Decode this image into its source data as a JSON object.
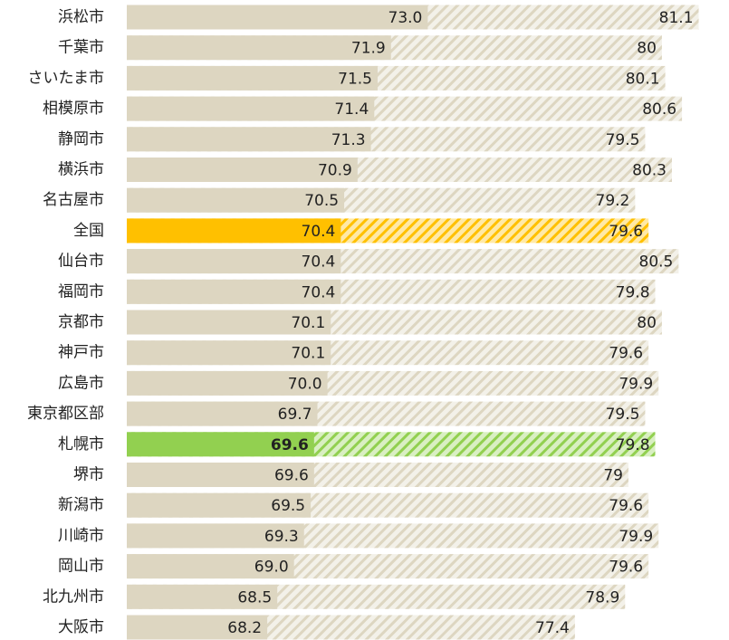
{
  "chart_data": {
    "type": "overlap-bar",
    "categories": [
      "浜松市",
      "千葉市",
      "さいたま市",
      "相模原市",
      "静岡市",
      "横浜市",
      "名古屋市",
      "全国",
      "仙台市",
      "福岡市",
      "京都市",
      "神戸市",
      "広島市",
      "東京都区部",
      "札幌市",
      "堺市",
      "新潟市",
      "川崎市",
      "岡山市",
      "北九州市",
      "大阪市"
    ],
    "series": [
      {
        "color": "#ddd6c1",
        "pattern": "solid",
        "values": [
          73.0,
          71.9,
          71.5,
          71.4,
          71.3,
          70.9,
          70.5,
          70.4,
          70.4,
          70.4,
          70.1,
          70.1,
          70.0,
          69.7,
          69.6,
          69.6,
          69.5,
          69.3,
          69.0,
          68.5,
          68.2
        ],
        "value_labels": [
          "73.0",
          "71.9",
          "71.5",
          "71.4",
          "71.3",
          "70.9",
          "70.5",
          "70.4",
          "70.4",
          "70.4",
          "70.1",
          "70.1",
          "70.0",
          "69.7",
          "69.6",
          "69.6",
          "69.5",
          "69.3",
          "69.0",
          "68.5",
          "68.2"
        ]
      },
      {
        "color": "#ddd6c1",
        "pattern": "hatch",
        "values": [
          81.1,
          80.0,
          80.1,
          80.6,
          79.5,
          80.3,
          79.2,
          79.6,
          80.5,
          79.8,
          80.0,
          79.6,
          79.9,
          79.5,
          79.8,
          79.0,
          79.6,
          79.9,
          79.6,
          78.9,
          77.4
        ]
      }
    ],
    "highlights": [
      {
        "index": 7,
        "color": "#ffc000"
      },
      {
        "index": 14,
        "color": "#92d050",
        "bold": true
      }
    ],
    "xlim": [
      64,
      81.6
    ]
  }
}
